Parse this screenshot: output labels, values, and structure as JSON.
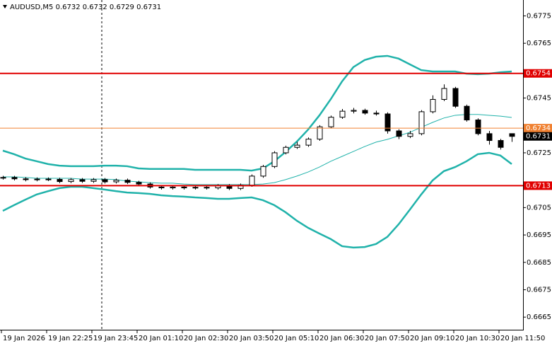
{
  "chart_data": {
    "type": "candlestick",
    "title": "AUDUSD,M5  0.6732 0.6732 0.6729 0.6731",
    "categories": [
      "19 Jan 2026",
      null,
      null,
      null,
      "19 Jan 22:25",
      null,
      null,
      null,
      "19 Jan 23:45",
      null,
      null,
      null,
      "20 Jan 01:10",
      null,
      null,
      null,
      "20 Jan 02:30",
      null,
      null,
      null,
      "20 Jan 03:50",
      null,
      null,
      null,
      "20 Jan 05:10",
      null,
      null,
      null,
      "20 Jan 06:30",
      null,
      null,
      null,
      "20 Jan 07:50",
      null,
      null,
      null,
      "20 Jan 09:10",
      null,
      null,
      null,
      "20 Jan 10:30",
      null,
      null,
      null,
      "20 Jan 11:50",
      null
    ],
    "open": [
      0.67158,
      0.6716,
      0.67155,
      0.67152,
      0.67154,
      0.67153,
      0.67145,
      0.67152,
      0.67146,
      0.67152,
      0.67144,
      0.6715,
      0.67142,
      0.67136,
      0.67125,
      0.67122,
      0.67125,
      0.67122,
      0.67124,
      0.67122,
      0.6713,
      0.6712,
      0.67132,
      0.67165,
      0.672,
      0.6725,
      0.6727,
      0.67278,
      0.673,
      0.67345,
      0.6738,
      0.67402,
      0.67405,
      0.67395,
      0.67392,
      0.6733,
      0.6731,
      0.6732,
      0.674,
      0.67445,
      0.67485,
      0.6742,
      0.6737,
      0.6732,
      0.67295,
      0.6732
    ],
    "high": [
      0.67166,
      0.67166,
      0.67161,
      0.6716,
      0.6716,
      0.67159,
      0.67158,
      0.67158,
      0.67158,
      0.67158,
      0.67156,
      0.67156,
      0.67148,
      0.67142,
      0.67131,
      0.67131,
      0.67131,
      0.6713,
      0.6713,
      0.67136,
      0.67136,
      0.67138,
      0.67171,
      0.67206,
      0.67256,
      0.67276,
      0.6729,
      0.67306,
      0.67351,
      0.67386,
      0.6741,
      0.67414,
      0.67411,
      0.67404,
      0.67398,
      0.67336,
      0.6733,
      0.67406,
      0.6746,
      0.675,
      0.67491,
      0.67426,
      0.67376,
      0.6733,
      0.67301,
      0.6732
    ],
    "low": [
      0.67152,
      0.67149,
      0.67146,
      0.67146,
      0.67147,
      0.67139,
      0.67139,
      0.6714,
      0.6714,
      0.67138,
      0.67138,
      0.67136,
      0.6713,
      0.67119,
      0.67116,
      0.67116,
      0.67116,
      0.67116,
      0.67116,
      0.67116,
      0.67114,
      0.67114,
      0.67126,
      0.67159,
      0.67194,
      0.67244,
      0.67264,
      0.67272,
      0.67294,
      0.67339,
      0.67374,
      0.67394,
      0.67389,
      0.67386,
      0.6732,
      0.673,
      0.67304,
      0.67314,
      0.67394,
      0.67439,
      0.67414,
      0.67364,
      0.67314,
      0.6728,
      0.67262,
      0.6729
    ],
    "close": [
      0.6716,
      0.67155,
      0.67152,
      0.67154,
      0.67153,
      0.67145,
      0.67152,
      0.67146,
      0.67152,
      0.67144,
      0.6715,
      0.67142,
      0.67136,
      0.67125,
      0.67122,
      0.67125,
      0.67122,
      0.67124,
      0.67122,
      0.6713,
      0.6712,
      0.67132,
      0.67165,
      0.672,
      0.6725,
      0.6727,
      0.67278,
      0.673,
      0.67345,
      0.6738,
      0.67402,
      0.67405,
      0.67395,
      0.67392,
      0.6733,
      0.6731,
      0.6732,
      0.674,
      0.67445,
      0.67485,
      0.6742,
      0.6737,
      0.6732,
      0.67295,
      0.6727,
      0.6731
    ],
    "bull_color": "#ffffff",
    "bear_color": "#000000",
    "wick_color": "#000000",
    "bands": {
      "color": "#20b2aa",
      "upper": [
        0.67258,
        0.67245,
        0.67229,
        0.67219,
        0.67209,
        0.67203,
        0.67201,
        0.67201,
        0.67201,
        0.67203,
        0.67203,
        0.67201,
        0.67193,
        0.67191,
        0.67191,
        0.67191,
        0.67191,
        0.67188,
        0.67188,
        0.67188,
        0.67188,
        0.67188,
        0.67185,
        0.67193,
        0.67219,
        0.67253,
        0.67291,
        0.67335,
        0.67387,
        0.67446,
        0.67511,
        0.67563,
        0.67589,
        0.67601,
        0.67604,
        0.67594,
        0.67573,
        0.67552,
        0.67547,
        0.67547,
        0.67547,
        0.67539,
        0.67537,
        0.67539,
        0.67544,
        0.67547
      ],
      "middle": [
        0.67162,
        0.67162,
        0.6716,
        0.67157,
        0.67157,
        0.67157,
        0.67157,
        0.67154,
        0.67154,
        0.67154,
        0.67152,
        0.67147,
        0.67144,
        0.67141,
        0.67139,
        0.67139,
        0.67136,
        0.67134,
        0.67134,
        0.67134,
        0.67134,
        0.67134,
        0.67134,
        0.67136,
        0.67141,
        0.67152,
        0.67165,
        0.6718,
        0.67198,
        0.67219,
        0.67237,
        0.67255,
        0.67273,
        0.67289,
        0.67299,
        0.67312,
        0.67325,
        0.67343,
        0.67361,
        0.67377,
        0.67387,
        0.6739,
        0.6739,
        0.67387,
        0.67384,
        0.67379
      ],
      "lower": [
        0.67038,
        0.67059,
        0.67079,
        0.67098,
        0.6711,
        0.67121,
        0.67126,
        0.67126,
        0.67121,
        0.67116,
        0.6711,
        0.67105,
        0.67103,
        0.671,
        0.67095,
        0.67092,
        0.6709,
        0.67087,
        0.67085,
        0.67082,
        0.67082,
        0.67085,
        0.67087,
        0.67077,
        0.67059,
        0.67033,
        0.67002,
        0.66976,
        0.66955,
        0.66935,
        0.66909,
        0.66904,
        0.66906,
        0.66917,
        0.66943,
        0.66989,
        0.67043,
        0.67098,
        0.67149,
        0.67183,
        0.67198,
        0.67219,
        0.67245,
        0.6725,
        0.6724,
        0.67209
      ]
    },
    "levels": [
      {
        "value": 0.6754,
        "color": "#e00000"
      },
      {
        "value": 0.6734,
        "color": "#f08030"
      },
      {
        "value": 0.6713,
        "color": "#e00000"
      }
    ],
    "current_price": {
      "value": 0.6731,
      "color": "#000000"
    },
    "ylim": [
      0.66604,
      0.67808
    ],
    "yticks": [
      0.6775,
      0.6765,
      0.6745,
      0.6725,
      0.6705,
      0.6695,
      0.6685,
      0.6675,
      0.6665
    ]
  }
}
